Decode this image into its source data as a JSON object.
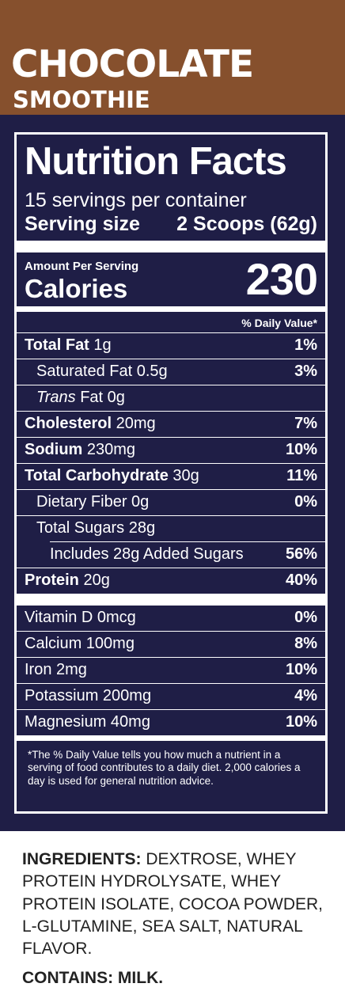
{
  "brand": {
    "line1": "CHOCOLATE",
    "line2": "SMOOTHIE"
  },
  "label": {
    "title": "Nutrition Facts",
    "servings": "15 servings per container",
    "serving_size_label": "Serving size",
    "serving_size_value": "2 Scoops (62g)",
    "amount_per_serving": "Amount Per Serving",
    "calories_label": "Calories",
    "calories_value": "230",
    "dv_header": "% Daily Value*",
    "rows": [
      {
        "bold": "Total Fat",
        "text": " 1g",
        "pct": "1%"
      },
      {
        "bold": "",
        "text": "Saturated Fat  0.5g",
        "pct": "3%"
      },
      {
        "italic": "Trans",
        "text": " Fat  0g",
        "pct": ""
      },
      {
        "bold": "Cholesterol",
        "text": " 20mg",
        "pct": "7%"
      },
      {
        "bold": "Sodium",
        "text": " 230mg",
        "pct": "10%"
      },
      {
        "bold": "Total Carbohydrate",
        "text": " 30g",
        "pct": "11%"
      },
      {
        "bold": "",
        "text": "Dietary Fiber  0g",
        "pct": "0%"
      },
      {
        "bold": "",
        "text": "Total Sugars  28g",
        "pct": ""
      },
      {
        "bold": "",
        "text": "Includes 28g Added Sugars",
        "pct": "56%"
      },
      {
        "bold": "Protein",
        "text": " 20g",
        "pct": "40%"
      }
    ],
    "vitamins": [
      {
        "text": "Vitamin D  0mcg",
        "pct": "0%"
      },
      {
        "text": "Calcium  100mg",
        "pct": "8%"
      },
      {
        "text": "Iron  2mg",
        "pct": "10%"
      },
      {
        "text": "Potassium  200mg",
        "pct": "4%"
      },
      {
        "text": "Magnesium  40mg",
        "pct": "10%"
      }
    ],
    "footnote": "*The % Daily Value tells you how much a nutrient in a serving of food contributes to a daily diet. 2,000 calories a day is used for general nutrition advice."
  },
  "ingredients": {
    "label": "INGREDIENTS:",
    "text": " DEXTROSE, WHEY PROTEIN HYDROLYSATE, WHEY PROTEIN ISOLATE, COCOA POWDER, L-GLUTAMINE, SEA SALT, NATURAL FLAVOR."
  },
  "contains": "CONTAINS: MILK.",
  "colors": {
    "brand_brown": "#86502d",
    "panel_navy": "#1f1e46"
  }
}
